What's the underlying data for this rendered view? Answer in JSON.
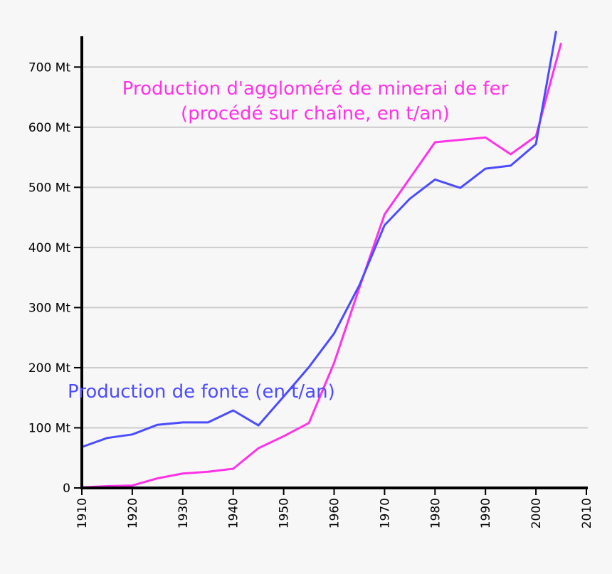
{
  "chart_data": {
    "type": "line",
    "title": "",
    "xlabel": "",
    "ylabel": "",
    "xlim": [
      1910,
      2010
    ],
    "ylim": [
      0,
      750
    ],
    "grid": true,
    "x_ticks": [
      1910,
      1920,
      1930,
      1940,
      1950,
      1960,
      1970,
      1980,
      1990,
      2000,
      2010
    ],
    "y_ticks": [
      {
        "value": 0,
        "label": "0"
      },
      {
        "value": 100,
        "label": "100 Mt"
      },
      {
        "value": 200,
        "label": "200 Mt"
      },
      {
        "value": 300,
        "label": "300 Mt"
      },
      {
        "value": 400,
        "label": "400 Mt"
      },
      {
        "value": 500,
        "label": "500 Mt"
      },
      {
        "value": 600,
        "label": "600 Mt"
      },
      {
        "value": 700,
        "label": "700 Mt"
      }
    ],
    "series": [
      {
        "name": "Production de fonte (en t/an)",
        "color": "#4c4cff",
        "x": [
          1910,
          1915,
          1920,
          1925,
          1930,
          1935,
          1940,
          1945,
          1950,
          1955,
          1960,
          1965,
          1970,
          1975,
          1980,
          1985,
          1990,
          1995,
          2000,
          2004
        ],
        "values": [
          68,
          83,
          89,
          105,
          109,
          109,
          129,
          104,
          152,
          201,
          257,
          337,
          437,
          481,
          513,
          499,
          531,
          536,
          572,
          760
        ]
      },
      {
        "name_lines": [
          "Production d'aggloméré de minerai de fer",
          "(procédé sur chaîne, en t/an)"
        ],
        "color": "#ff33e6",
        "x": [
          1910,
          1915,
          1920,
          1925,
          1930,
          1935,
          1940,
          1945,
          1950,
          1955,
          1960,
          1965,
          1970,
          1975,
          1980,
          1985,
          1990,
          1995,
          2000,
          2005
        ],
        "values": [
          1,
          3,
          4,
          16,
          24,
          27,
          32,
          66,
          86,
          108,
          208,
          333,
          455,
          515,
          575,
          579,
          583,
          555,
          585,
          740
        ]
      }
    ]
  }
}
